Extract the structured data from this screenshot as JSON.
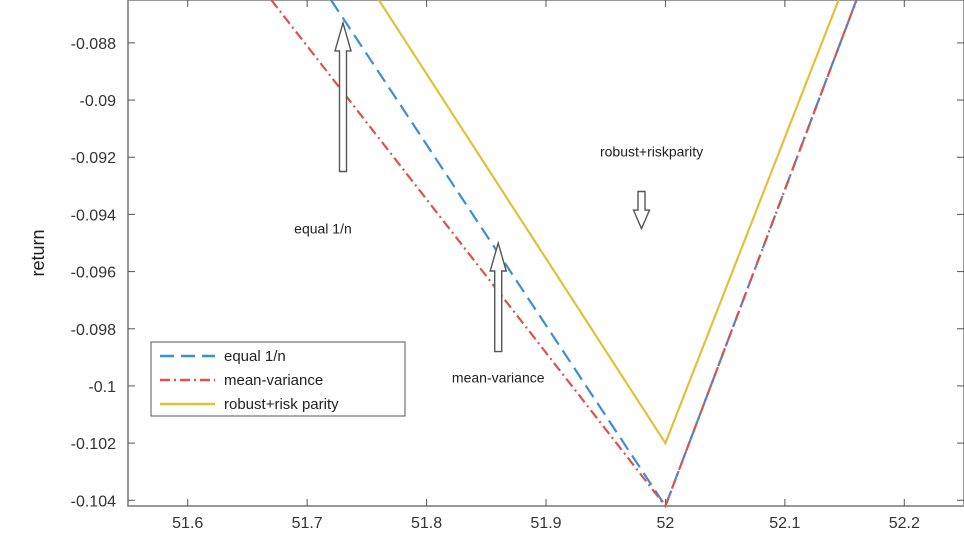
{
  "chart_data": {
    "type": "line",
    "title": "",
    "xlabel": "",
    "ylabel": "return",
    "xlim": [
      51.55,
      52.25
    ],
    "ylim": [
      -0.1042,
      -0.0865
    ],
    "xticks": [
      51.6,
      51.7,
      51.8,
      51.9,
      52,
      52.1,
      52.2
    ],
    "xtick_labels": [
      "51.6",
      "51.7",
      "51.8",
      "51.9",
      "52",
      "52.1",
      "52.2"
    ],
    "yticks": [
      -0.088,
      -0.09,
      -0.092,
      -0.094,
      -0.096,
      -0.098,
      -0.1,
      -0.102,
      -0.104
    ],
    "ytick_labels": [
      "-0.088",
      "-0.09",
      "-0.092",
      "-0.094",
      "-0.096",
      "-0.098",
      "-0.1",
      "-0.102",
      "-0.104"
    ],
    "grid": false,
    "legend_position": "bottom-left",
    "series": [
      {
        "name": "equal 1/n",
        "color": "#3a8fd6",
        "dash": "dashed",
        "x": [
          51.72,
          52.0,
          52.16
        ],
        "y": [
          -0.0865,
          -0.1042,
          -0.0865
        ]
      },
      {
        "name": "mean-variance",
        "color": "#d9534f",
        "dash": "dashdot",
        "x": [
          51.67,
          52.0,
          52.16
        ],
        "y": [
          -0.0865,
          -0.1042,
          -0.0865
        ]
      },
      {
        "name": "robust+risk parity",
        "color": "#e0c23a",
        "dash": "solid",
        "x": [
          51.76,
          52.0,
          52.145
        ],
        "y": [
          -0.0865,
          -0.102,
          -0.0865
        ]
      }
    ],
    "annotations": [
      {
        "text": "equal 1/n",
        "x": 51.73,
        "y": -0.0945,
        "arrow_from_y": -0.0925,
        "arrow_to_y": -0.0873
      },
      {
        "text": "robust+riskparity",
        "x": 51.98,
        "y": -0.0918,
        "arrow_from_y": -0.0932,
        "arrow_to_y": -0.0945
      },
      {
        "text": "mean-variance",
        "x": 51.86,
        "y": -0.0997,
        "arrow_from_y": -0.0988,
        "arrow_to_y": -0.095
      }
    ]
  }
}
